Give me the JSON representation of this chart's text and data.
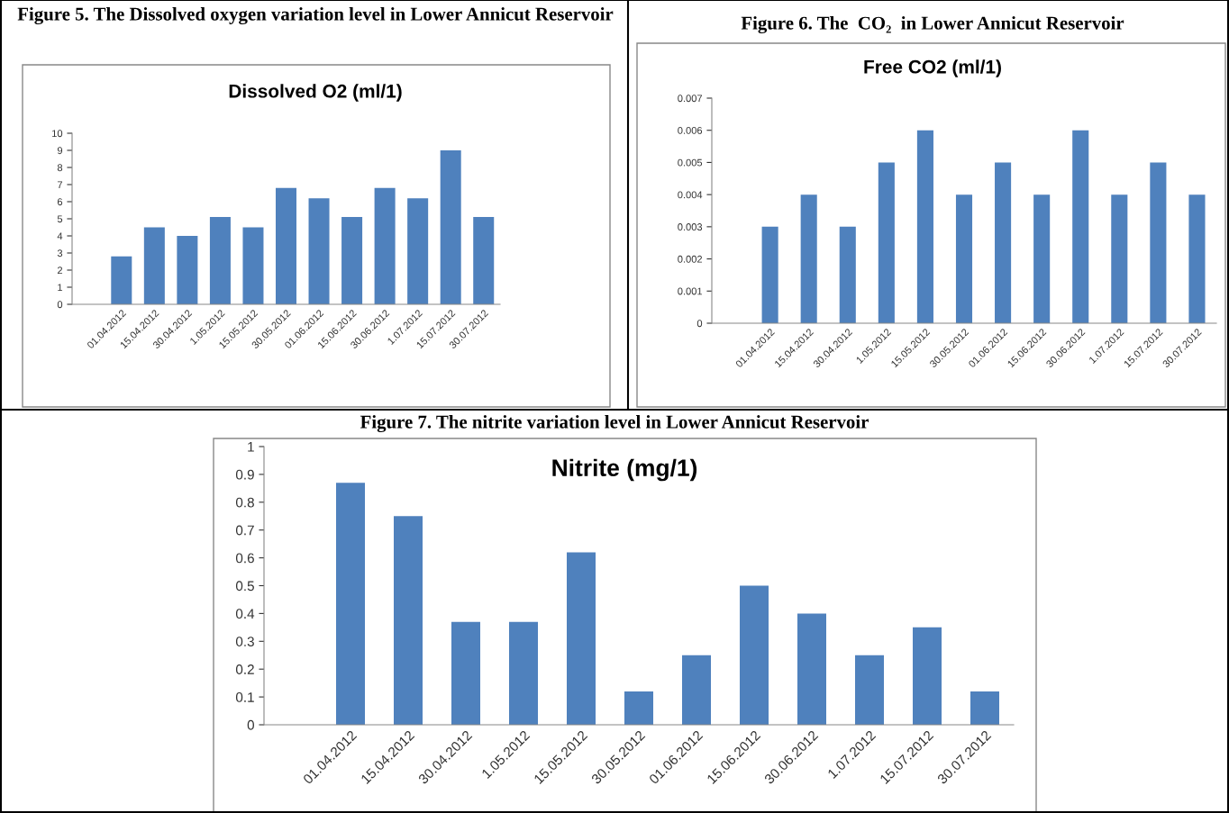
{
  "chart_data": [
    {
      "type": "bar",
      "title": "Figure 5. The Dissolved oxygen variation level in Lower Annicut Reservoir",
      "subtitle": "Dissolved O2 (ml/1)",
      "categories": [
        null,
        "01.04.2012",
        "15.04.2012",
        "30.04.2012",
        "1.05.2012",
        "15.05.2012",
        "30.05.2012",
        "01.06.2012",
        "15.06.2012",
        "30.06.2012",
        "1.07.2012",
        "15.07.2012",
        "30.07.2012"
      ],
      "values": [
        null,
        2.8,
        4.5,
        4,
        5.1,
        4.5,
        6.8,
        6.2,
        5.1,
        6.8,
        6.2,
        9,
        5.1
      ],
      "color": "#4f81bd",
      "ylim": [
        0,
        10
      ],
      "yticks": [
        0,
        1,
        2,
        3,
        4,
        5,
        6,
        7,
        8,
        9,
        10
      ],
      "grid": false,
      "legend": false
    },
    {
      "type": "bar",
      "title": "Figure 6. The  CO₂  in Lower Annicut Reservoir",
      "subtitle": "Free CO2 (ml/1)",
      "categories": [
        null,
        "01.04.2012",
        "15.04.2012",
        "30.04.2012",
        "1.05.2012",
        "15.05.2012",
        "30.05.2012",
        "01.06.2012",
        "15.06.2012",
        "30.06.2012",
        "1.07.2012",
        "15.07.2012",
        "30.07.2012"
      ],
      "values": [
        null,
        0.003,
        0.004,
        0.003,
        0.005,
        0.006,
        0.004,
        0.005,
        0.004,
        0.006,
        0.004,
        0.005,
        0.004
      ],
      "color": "#4f81bd",
      "ylim": [
        0,
        0.007
      ],
      "yticks": [
        0,
        0.001,
        0.002,
        0.003,
        0.004,
        0.005,
        0.006,
        0.007
      ],
      "grid": false,
      "legend": false
    },
    {
      "type": "bar",
      "title": "Figure 7. The nitrite variation level in Lower Annicut Reservoir",
      "subtitle": "Nitrite (mg/1)",
      "categories": [
        null,
        "01.04.2012",
        "15.04.2012",
        "30.04.2012",
        "1.05.2012",
        "15.05.2012",
        "30.05.2012",
        "01.06.2012",
        "15.06.2012",
        "30.06.2012",
        "1.07.2012",
        "15.07.2012",
        "30.07.2012"
      ],
      "values": [
        null,
        0.87,
        0.75,
        0.37,
        0.37,
        0.62,
        0.12,
        0.25,
        0.5,
        0.4,
        0.25,
        0.35,
        0.12
      ],
      "color": "#4f81bd",
      "ylim": [
        0,
        1
      ],
      "yticks": [
        0,
        0.1,
        0.2,
        0.3,
        0.4,
        0.5,
        0.6,
        0.7,
        0.8,
        0.9,
        1
      ],
      "grid": false,
      "legend": false
    }
  ]
}
